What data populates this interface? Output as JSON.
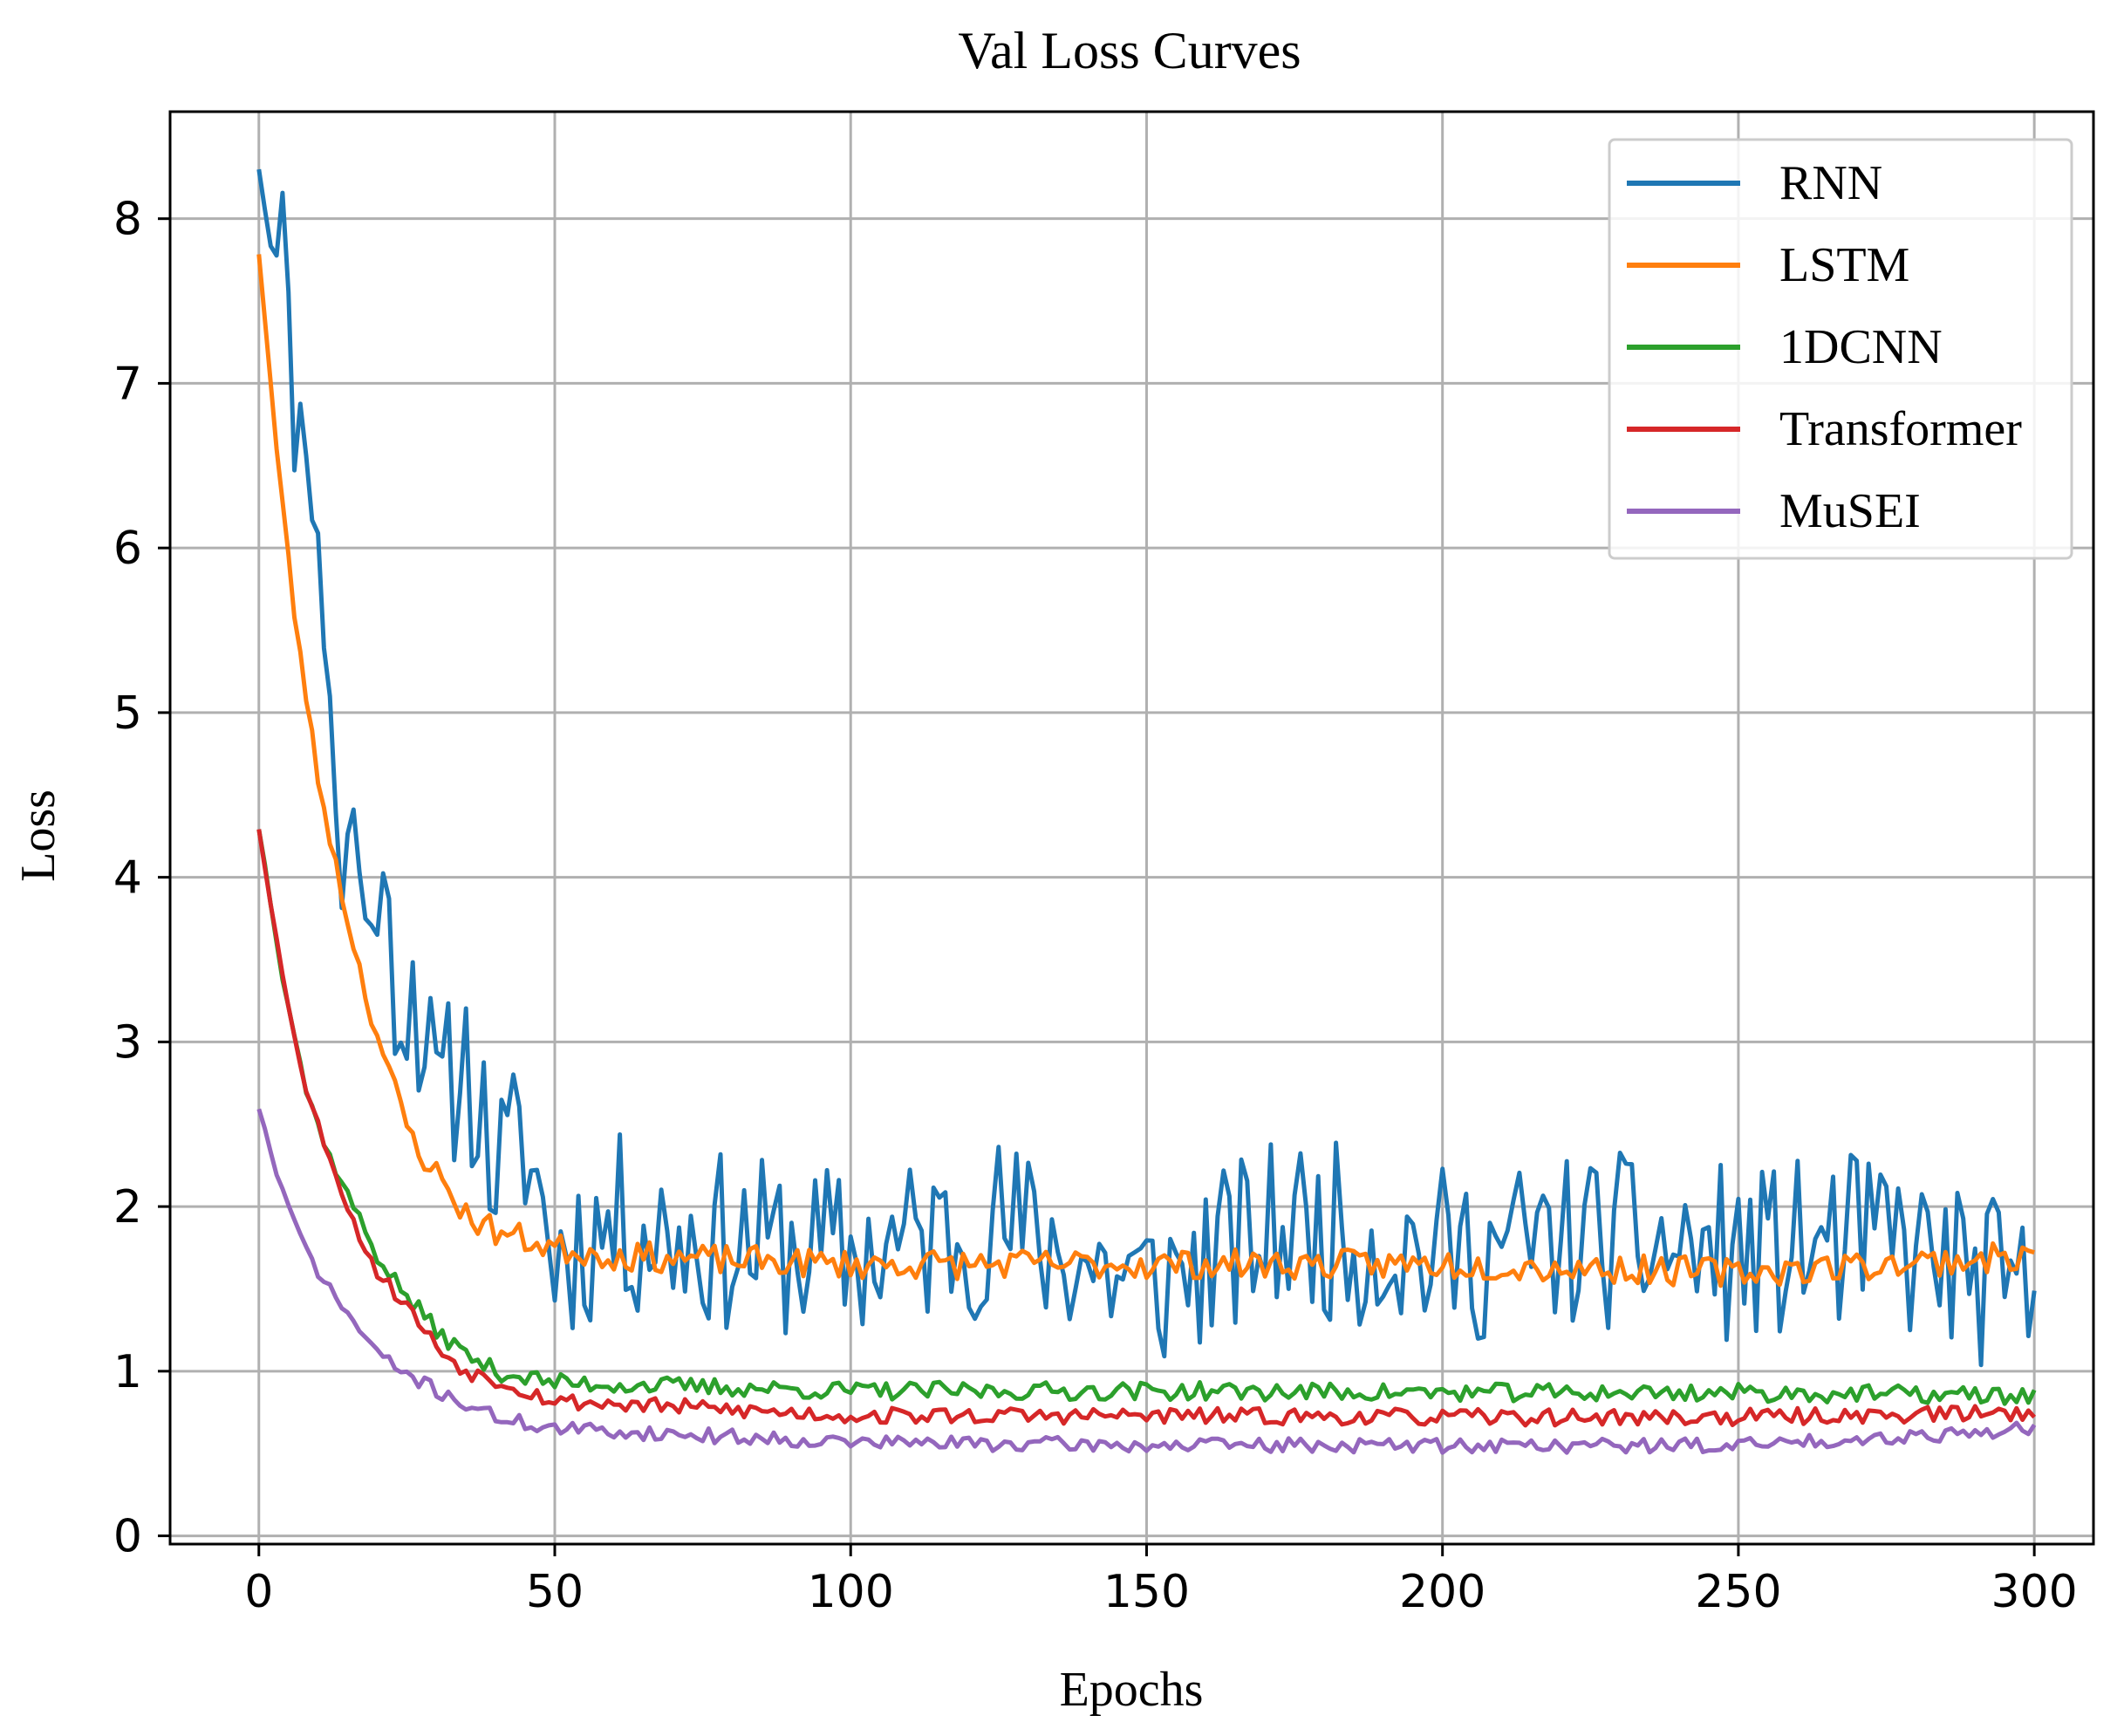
{
  "chart_data": {
    "type": "line",
    "title": "Val Loss Curves",
    "xlabel": "Epochs",
    "ylabel": "Loss",
    "xlim": [
      -15,
      310
    ],
    "ylim": [
      -0.05,
      8.65
    ],
    "xticks": [
      0,
      50,
      100,
      150,
      200,
      250,
      300
    ],
    "xtick_labels": [
      "0",
      "50",
      "100",
      "150",
      "200",
      "250",
      "300"
    ],
    "yticks": [
      0,
      1,
      2,
      3,
      4,
      5,
      6,
      7,
      8
    ],
    "ytick_labels": [
      "0",
      "1",
      "2",
      "3",
      "4",
      "5",
      "6",
      "7",
      "8"
    ],
    "grid": true,
    "legend_position": "top-right",
    "series": [
      {
        "name": "RNN",
        "color": "#1f77b4",
        "start": 8.4,
        "floor": 1.75,
        "decay": 12,
        "noise": 0.55,
        "seed": 11,
        "anchors": [
          [
            0,
            8.4
          ],
          [
            2,
            7.9
          ],
          [
            4,
            8.05
          ],
          [
            6,
            6.7
          ],
          [
            8,
            6.8
          ],
          [
            10,
            5.9
          ],
          [
            12,
            5.2
          ],
          [
            14,
            3.8
          ],
          [
            16,
            4.5
          ],
          [
            18,
            3.6
          ],
          [
            20,
            4.0
          ],
          [
            24,
            3.2
          ],
          [
            26,
            3.4
          ],
          [
            30,
            2.6
          ],
          [
            35,
            2.9
          ],
          [
            40,
            2.2
          ],
          [
            45,
            2.4
          ],
          [
            50,
            1.7
          ],
          [
            60,
            1.9
          ],
          [
            75,
            1.8
          ],
          [
            100,
            1.7
          ],
          [
            125,
            1.9
          ],
          [
            150,
            1.5
          ],
          [
            175,
            1.9
          ],
          [
            200,
            1.7
          ],
          [
            225,
            1.8
          ],
          [
            250,
            1.7
          ],
          [
            275,
            1.8
          ],
          [
            300,
            1.4
          ]
        ]
      },
      {
        "name": "LSTM",
        "color": "#ff7f0e",
        "start": 7.8,
        "floor": 1.65,
        "decay": 11,
        "noise": 0.09,
        "seed": 23,
        "anchors": [
          [
            0,
            7.8
          ],
          [
            3,
            6.6
          ],
          [
            6,
            5.6
          ],
          [
            10,
            4.6
          ],
          [
            14,
            3.9
          ],
          [
            18,
            3.3
          ],
          [
            22,
            2.8
          ],
          [
            26,
            2.4
          ],
          [
            30,
            2.2
          ],
          [
            35,
            1.95
          ],
          [
            40,
            1.85
          ],
          [
            50,
            1.75
          ],
          [
            60,
            1.7
          ],
          [
            100,
            1.65
          ],
          [
            150,
            1.65
          ],
          [
            200,
            1.65
          ],
          [
            250,
            1.6
          ],
          [
            300,
            1.7
          ]
        ]
      },
      {
        "name": "1DCNN",
        "color": "#2ca02c",
        "start": 4.3,
        "floor": 0.9,
        "decay": 10,
        "noise": 0.055,
        "seed": 37,
        "anchors": [
          [
            0,
            4.3
          ],
          [
            4,
            3.4
          ],
          [
            8,
            2.7
          ],
          [
            12,
            2.3
          ],
          [
            16,
            2.0
          ],
          [
            20,
            1.7
          ],
          [
            25,
            1.45
          ],
          [
            30,
            1.25
          ],
          [
            35,
            1.1
          ],
          [
            40,
            1.0
          ],
          [
            50,
            0.93
          ],
          [
            100,
            0.88
          ],
          [
            150,
            0.88
          ],
          [
            200,
            0.87
          ],
          [
            250,
            0.87
          ],
          [
            300,
            0.85
          ]
        ]
      },
      {
        "name": "Transformer",
        "color": "#d62728",
        "start": 4.3,
        "floor": 0.73,
        "decay": 10,
        "noise": 0.05,
        "seed": 53,
        "anchors": [
          [
            0,
            4.3
          ],
          [
            4,
            3.4
          ],
          [
            8,
            2.7
          ],
          [
            12,
            2.3
          ],
          [
            16,
            1.9
          ],
          [
            20,
            1.6
          ],
          [
            25,
            1.4
          ],
          [
            30,
            1.15
          ],
          [
            35,
            1.0
          ],
          [
            40,
            0.95
          ],
          [
            50,
            0.82
          ],
          [
            100,
            0.73
          ],
          [
            150,
            0.73
          ],
          [
            200,
            0.72
          ],
          [
            250,
            0.72
          ],
          [
            300,
            0.75
          ]
        ]
      },
      {
        "name": "MuSEI",
        "color": "#9467bd",
        "start": 2.6,
        "floor": 0.55,
        "decay": 10,
        "noise": 0.045,
        "seed": 71,
        "anchors": [
          [
            0,
            2.6
          ],
          [
            3,
            2.2
          ],
          [
            6,
            1.9
          ],
          [
            10,
            1.6
          ],
          [
            14,
            1.4
          ],
          [
            18,
            1.2
          ],
          [
            22,
            1.05
          ],
          [
            28,
            0.92
          ],
          [
            35,
            0.8
          ],
          [
            40,
            0.72
          ],
          [
            50,
            0.65
          ],
          [
            100,
            0.57
          ],
          [
            150,
            0.55
          ],
          [
            200,
            0.55
          ],
          [
            250,
            0.55
          ],
          [
            300,
            0.65
          ]
        ]
      }
    ]
  }
}
